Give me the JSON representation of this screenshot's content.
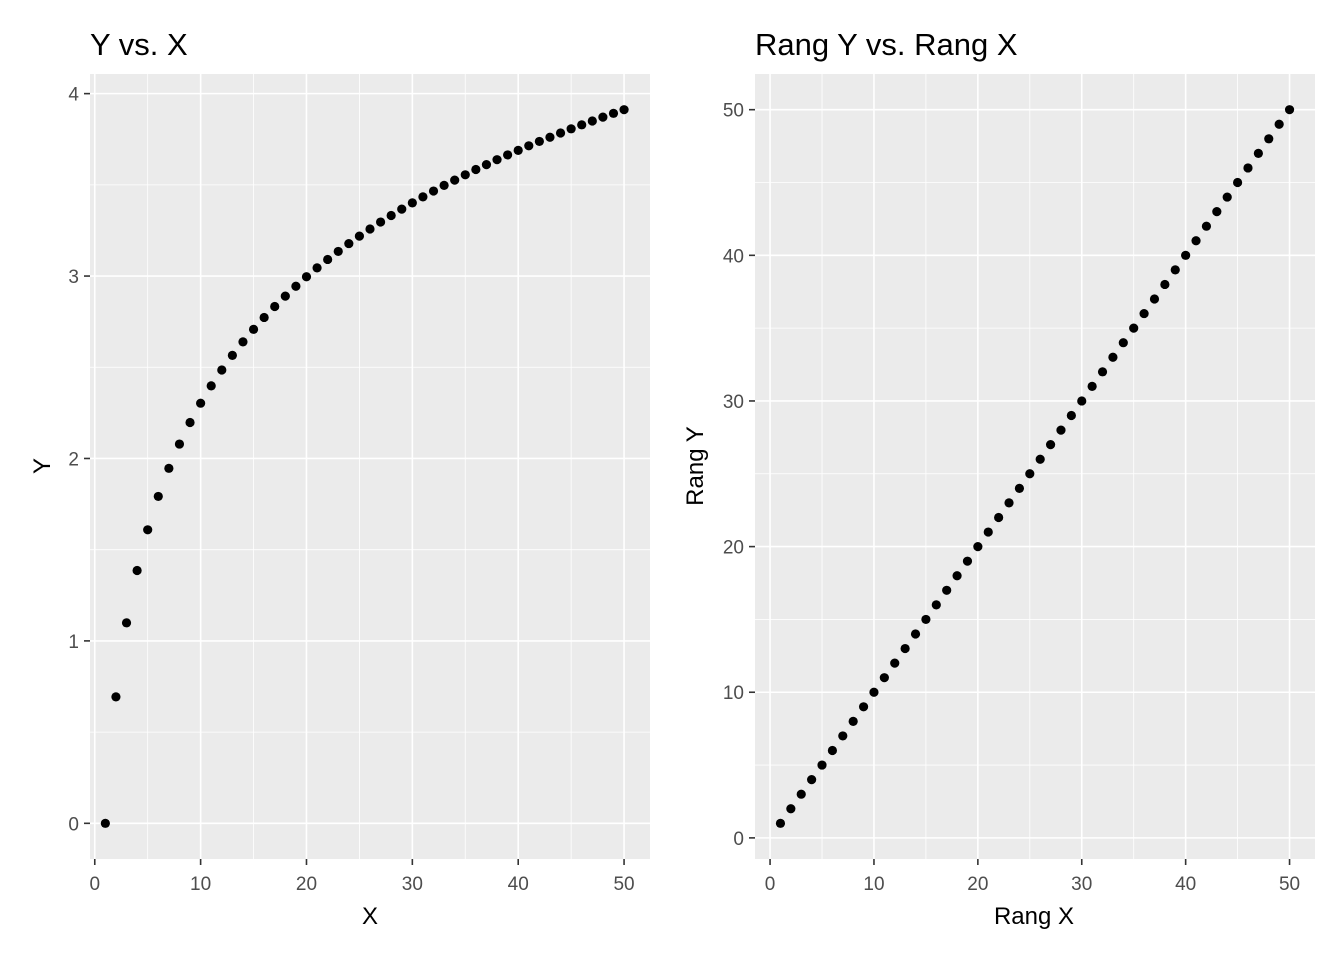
{
  "chart_data": [
    {
      "type": "scatter",
      "title": "Y vs. X",
      "xlabel": "X",
      "ylabel": "Y",
      "xlim": [
        -0.45,
        52.45
      ],
      "ylim": [
        -0.1956,
        4.1076
      ],
      "x_ticks": [
        0,
        10,
        20,
        30,
        40,
        50
      ],
      "x_tick_labels": [
        "0",
        "10",
        "20",
        "30",
        "40",
        "50"
      ],
      "y_ticks": [
        0,
        1,
        2,
        3,
        4
      ],
      "y_tick_labels": [
        "0",
        "1",
        "2",
        "3",
        "4"
      ],
      "grid": true,
      "point_color": "#000000",
      "x": [
        1,
        2,
        3,
        4,
        5,
        6,
        7,
        8,
        9,
        10,
        11,
        12,
        13,
        14,
        15,
        16,
        17,
        18,
        19,
        20,
        21,
        22,
        23,
        24,
        25,
        26,
        27,
        28,
        29,
        30,
        31,
        32,
        33,
        34,
        35,
        36,
        37,
        38,
        39,
        40,
        41,
        42,
        43,
        44,
        45,
        46,
        47,
        48,
        49,
        50
      ],
      "y": [
        0.0,
        0.693,
        1.099,
        1.386,
        1.609,
        1.792,
        1.946,
        2.079,
        2.197,
        2.303,
        2.398,
        2.485,
        2.565,
        2.639,
        2.708,
        2.773,
        2.833,
        2.89,
        2.944,
        2.996,
        3.045,
        3.091,
        3.135,
        3.178,
        3.219,
        3.258,
        3.296,
        3.332,
        3.367,
        3.401,
        3.434,
        3.466,
        3.497,
        3.526,
        3.555,
        3.584,
        3.611,
        3.638,
        3.664,
        3.689,
        3.714,
        3.738,
        3.761,
        3.784,
        3.807,
        3.829,
        3.85,
        3.871,
        3.892,
        3.912
      ]
    },
    {
      "type": "scatter",
      "title": "Rang Y vs. Rang X",
      "xlabel": "Rang X",
      "ylabel": "Rang Y",
      "xlim": [
        -1.45,
        52.45
      ],
      "ylim": [
        -1.45,
        52.45
      ],
      "x_ticks": [
        0,
        10,
        20,
        30,
        40,
        50
      ],
      "x_tick_labels": [
        "0",
        "10",
        "20",
        "30",
        "40",
        "50"
      ],
      "y_ticks": [
        0,
        10,
        20,
        30,
        40,
        50
      ],
      "y_tick_labels": [
        "0",
        "10",
        "20",
        "30",
        "40",
        "50"
      ],
      "grid": true,
      "point_color": "#000000",
      "x": [
        1,
        2,
        3,
        4,
        5,
        6,
        7,
        8,
        9,
        10,
        11,
        12,
        13,
        14,
        15,
        16,
        17,
        18,
        19,
        20,
        21,
        22,
        23,
        24,
        25,
        26,
        27,
        28,
        29,
        30,
        31,
        32,
        33,
        34,
        35,
        36,
        37,
        38,
        39,
        40,
        41,
        42,
        43,
        44,
        45,
        46,
        47,
        48,
        49,
        50
      ],
      "y": [
        1,
        2,
        3,
        4,
        5,
        6,
        7,
        8,
        9,
        10,
        11,
        12,
        13,
        14,
        15,
        16,
        17,
        18,
        19,
        20,
        21,
        22,
        23,
        24,
        25,
        26,
        27,
        28,
        29,
        30,
        31,
        32,
        33,
        34,
        35,
        36,
        37,
        38,
        39,
        40,
        41,
        42,
        43,
        44,
        45,
        46,
        47,
        48,
        49,
        50
      ]
    }
  ]
}
